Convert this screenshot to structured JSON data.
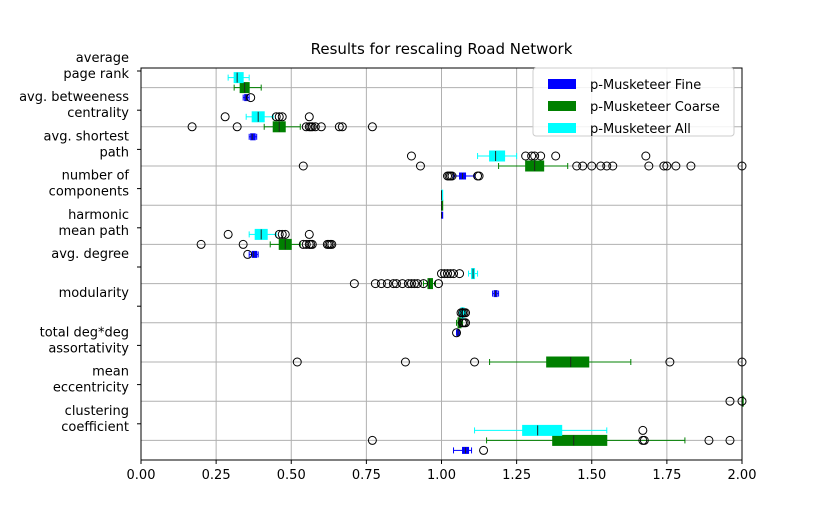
{
  "chart_data": {
    "type": "boxplot",
    "orientation": "horizontal",
    "title": "Results for rescaling Road Network",
    "xlabel": "",
    "ylabel": "",
    "xlim": [
      0.0,
      2.0
    ],
    "xticks": [
      "0.00",
      "0.25",
      "0.50",
      "0.75",
      "1.00",
      "1.25",
      "1.50",
      "1.75",
      "2.00"
    ],
    "grid": true,
    "legend_position": "top-right",
    "categories": [
      {
        "label": [
          "average",
          "page rank"
        ]
      },
      {
        "label": [
          "avg. betweeness",
          "centrality"
        ]
      },
      {
        "label": [
          "avg. shortest",
          "path"
        ]
      },
      {
        "label": [
          "number of",
          "components"
        ]
      },
      {
        "label": [
          "harmonic",
          "mean path"
        ]
      },
      {
        "label": [
          "avg. degree"
        ]
      },
      {
        "label": [
          "modularity"
        ]
      },
      {
        "label": [
          "total deg*deg",
          "assortativity"
        ]
      },
      {
        "label": [
          "mean",
          "eccentricity"
        ]
      },
      {
        "label": [
          "clustering",
          "coefficient"
        ]
      }
    ],
    "series": [
      {
        "name": "p-Musketeer Fine",
        "color": "#0000ff",
        "boxes": [
          {
            "cat": 0,
            "wlo": 0.34,
            "q1": 0.345,
            "med": 0.35,
            "q3": 0.355,
            "whi": 0.36,
            "fliers": [
              0.365
            ]
          },
          {
            "cat": 1,
            "wlo": 0.36,
            "q1": 0.365,
            "med": 0.37,
            "q3": 0.38,
            "whi": 0.385,
            "fliers": []
          },
          {
            "cat": 2,
            "wlo": 1.04,
            "q1": 1.06,
            "med": 1.07,
            "q3": 1.08,
            "whi": 1.11,
            "fliers": [
              1.02,
              1.025,
              1.03,
              1.035,
              1.12,
              1.125
            ]
          },
          {
            "cat": 3,
            "wlo": 1.0,
            "q1": 1.0,
            "med": 1.0,
            "q3": 1.0,
            "whi": 1.0,
            "fliers": []
          },
          {
            "cat": 4,
            "wlo": 0.36,
            "q1": 0.37,
            "med": 0.375,
            "q3": 0.385,
            "whi": 0.39,
            "fliers": [
              0.355
            ]
          },
          {
            "cat": 5,
            "wlo": 1.17,
            "q1": 1.175,
            "med": 1.18,
            "q3": 1.185,
            "whi": 1.19,
            "fliers": []
          },
          {
            "cat": 6,
            "wlo": 1.05,
            "q1": 1.052,
            "med": 1.055,
            "q3": 1.058,
            "whi": 1.06,
            "fliers": [
              1.05
            ]
          },
          {
            "cat": 9,
            "wlo": 1.04,
            "q1": 1.07,
            "med": 1.08,
            "q3": 1.09,
            "whi": 1.1,
            "fliers": [
              1.14
            ]
          }
        ]
      },
      {
        "name": "p-Musketeer Coarse",
        "color": "#008000",
        "boxes": [
          {
            "cat": 0,
            "wlo": 0.31,
            "q1": 0.33,
            "med": 0.345,
            "q3": 0.36,
            "whi": 0.4,
            "fliers": []
          },
          {
            "cat": 1,
            "wlo": 0.41,
            "q1": 0.44,
            "med": 0.46,
            "q3": 0.48,
            "whi": 0.53,
            "fliers": [
              0.17,
              0.32,
              0.55,
              0.56,
              0.565,
              0.57,
              0.58,
              0.6,
              0.66,
              0.67,
              0.77
            ]
          },
          {
            "cat": 2,
            "wlo": 1.19,
            "q1": 1.28,
            "med": 1.31,
            "q3": 1.34,
            "whi": 1.42,
            "fliers": [
              0.54,
              0.93,
              1.45,
              1.47,
              1.5,
              1.53,
              1.55,
              1.57,
              1.69,
              1.74,
              1.75,
              1.78,
              1.83,
              2.0
            ]
          },
          {
            "cat": 3,
            "wlo": 1.0,
            "q1": 1.0,
            "med": 1.0,
            "q3": 1.0,
            "whi": 1.0,
            "fliers": []
          },
          {
            "cat": 4,
            "wlo": 0.43,
            "q1": 0.46,
            "med": 0.48,
            "q3": 0.5,
            "whi": 0.53,
            "fliers": [
              0.2,
              0.34,
              0.54,
              0.55,
              0.56,
              0.565,
              0.57,
              0.62,
              0.625,
              0.63,
              0.635
            ]
          },
          {
            "cat": 5,
            "wlo": 0.94,
            "q1": 0.955,
            "med": 0.96,
            "q3": 0.97,
            "whi": 0.98,
            "fliers": [
              0.71,
              0.78,
              0.8,
              0.82,
              0.84,
              0.85,
              0.87,
              0.89,
              0.9,
              0.91,
              0.92,
              0.94,
              0.99
            ]
          },
          {
            "cat": 6,
            "wlo": 1.05,
            "q1": 1.055,
            "med": 1.06,
            "q3": 1.065,
            "whi": 1.07,
            "fliers": [
              1.07,
              1.075,
              1.08
            ]
          },
          {
            "cat": 7,
            "wlo": 1.16,
            "q1": 1.35,
            "med": 1.43,
            "q3": 1.49,
            "whi": 1.63,
            "fliers": [
              0.52,
              0.88,
              1.11,
              1.76,
              2.0
            ]
          },
          {
            "cat": 8,
            "wlo": 2.0,
            "q1": 2.0,
            "med": 2.0,
            "q3": 2.0,
            "whi": 2.0,
            "fliers": [
              1.96,
              2.0
            ]
          },
          {
            "cat": 9,
            "wlo": 1.15,
            "q1": 1.37,
            "med": 1.44,
            "q3": 1.55,
            "whi": 1.81,
            "fliers": [
              0.77,
              1.67,
              1.675,
              1.89,
              1.96
            ]
          }
        ]
      },
      {
        "name": "p-Musketeer All",
        "color": "#00ffff",
        "boxes": [
          {
            "cat": 0,
            "wlo": 0.29,
            "q1": 0.31,
            "med": 0.32,
            "q3": 0.34,
            "whi": 0.36,
            "fliers": []
          },
          {
            "cat": 1,
            "wlo": 0.35,
            "q1": 0.37,
            "med": 0.39,
            "q3": 0.41,
            "whi": 0.44,
            "fliers": [
              0.28,
              0.45,
              0.46,
              0.47,
              0.56
            ]
          },
          {
            "cat": 2,
            "wlo": 1.12,
            "q1": 1.16,
            "med": 1.18,
            "q3": 1.21,
            "whi": 1.25,
            "fliers": [
              0.9,
              1.28,
              1.3,
              1.31,
              1.33,
              1.38,
              1.68
            ]
          },
          {
            "cat": 3,
            "wlo": 1.0,
            "q1": 1.0,
            "med": 1.0,
            "q3": 1.0,
            "whi": 1.0,
            "fliers": []
          },
          {
            "cat": 4,
            "wlo": 0.36,
            "q1": 0.38,
            "med": 0.4,
            "q3": 0.42,
            "whi": 0.45,
            "fliers": [
              0.29,
              0.46,
              0.47,
              0.48,
              0.56
            ]
          },
          {
            "cat": 5,
            "wlo": 1.09,
            "q1": 1.1,
            "med": 1.105,
            "q3": 1.11,
            "whi": 1.12,
            "fliers": [
              1.0,
              1.01,
              1.02,
              1.03,
              1.04,
              1.06
            ]
          },
          {
            "cat": 6,
            "wlo": 1.06,
            "q1": 1.065,
            "med": 1.07,
            "q3": 1.075,
            "whi": 1.08,
            "fliers": [
              1.065,
              1.07,
              1.075,
              1.08
            ]
          },
          {
            "cat": 9,
            "wlo": 1.11,
            "q1": 1.27,
            "med": 1.32,
            "q3": 1.4,
            "whi": 1.55,
            "fliers": [
              1.67
            ]
          }
        ]
      }
    ]
  }
}
